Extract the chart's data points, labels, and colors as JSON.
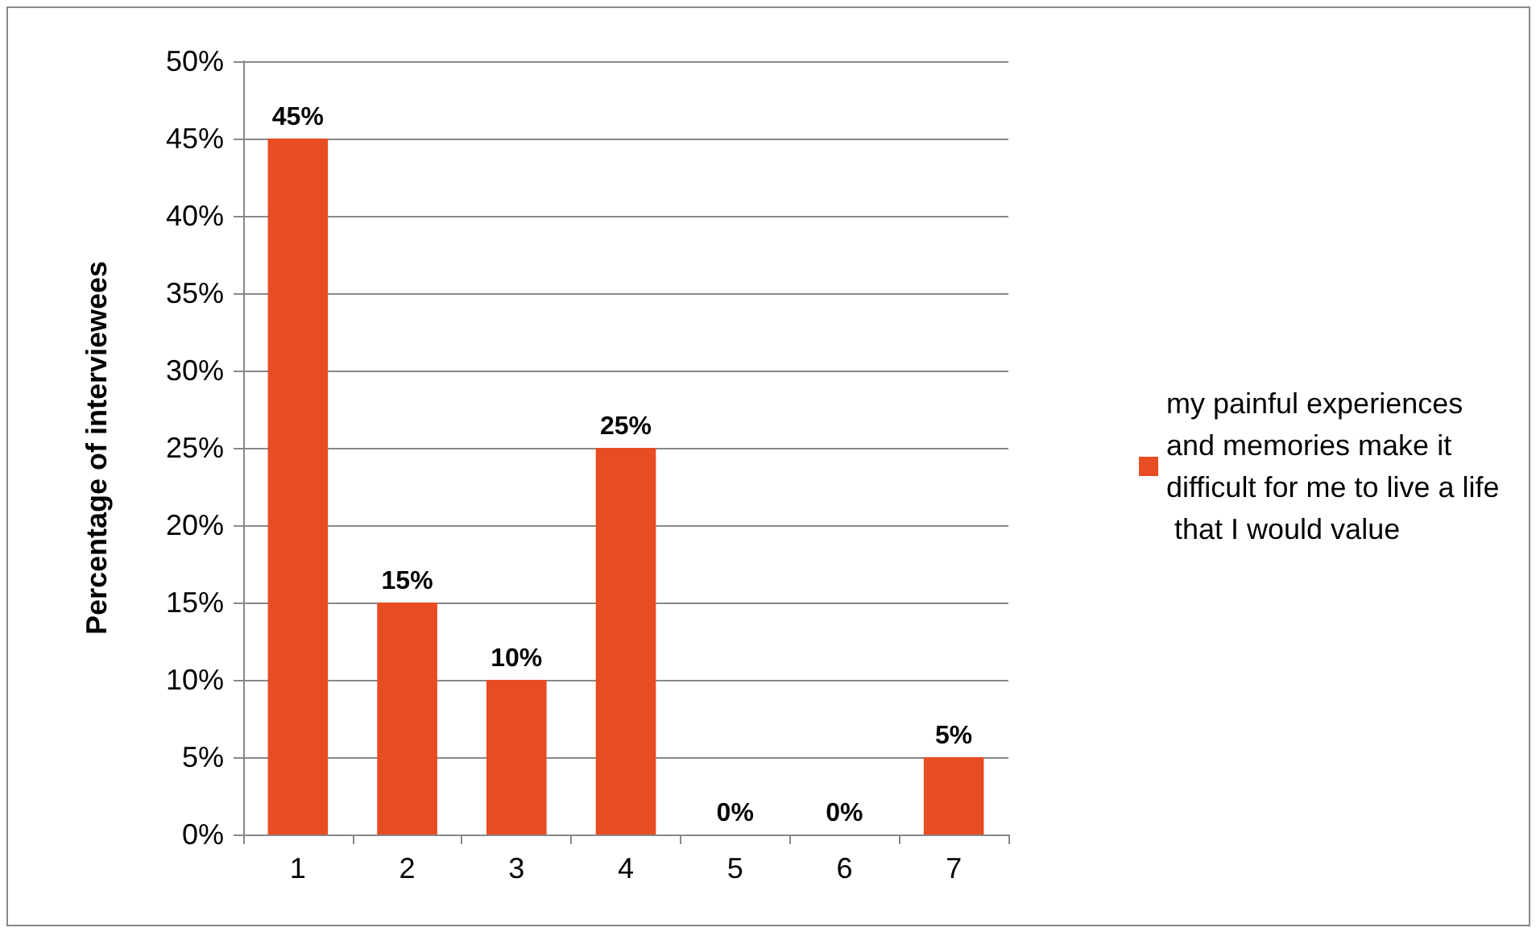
{
  "chart_data": {
    "type": "bar",
    "ylabel": "Percentage of interviewees",
    "categories": [
      "1",
      "2",
      "3",
      "4",
      "5",
      "6",
      "7"
    ],
    "series": [
      {
        "name": "my painful experiences and memories make it difficult for me to live a life that I would value",
        "color": "#e84c22",
        "values": [
          45,
          15,
          10,
          25,
          0,
          0,
          5
        ],
        "value_labels": [
          "45%",
          "15%",
          "10%",
          "25%",
          "0%",
          "0%",
          "5%"
        ]
      }
    ],
    "ylim": [
      0,
      50
    ],
    "yticks": [
      {
        "value": 0,
        "label": "0%"
      },
      {
        "value": 5,
        "label": "5%"
      },
      {
        "value": 10,
        "label": "10%"
      },
      {
        "value": 15,
        "label": "15%"
      },
      {
        "value": 20,
        "label": "20%"
      },
      {
        "value": 25,
        "label": "25%"
      },
      {
        "value": 30,
        "label": "30%"
      },
      {
        "value": 35,
        "label": "35%"
      },
      {
        "value": 40,
        "label": "40%"
      },
      {
        "value": 45,
        "label": "45%"
      },
      {
        "value": 50,
        "label": "50%"
      }
    ],
    "grid": "y",
    "legend": "right"
  }
}
